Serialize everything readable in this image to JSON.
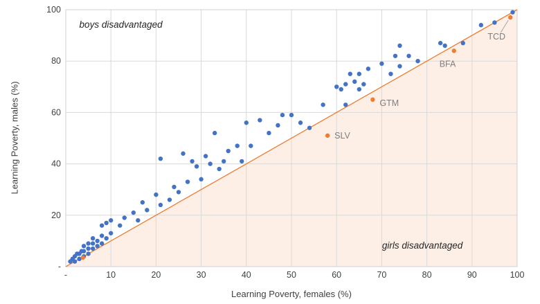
{
  "chart_data": {
    "type": "scatter",
    "title": "",
    "xlabel": "Learning Poverty, females (%)",
    "ylabel": "Learning Poverty, males (%)",
    "xlim": [
      0,
      100
    ],
    "ylim": [
      0,
      100
    ],
    "x_tick_values": [
      0,
      10,
      20,
      30,
      40,
      50,
      60,
      70,
      80,
      90,
      100
    ],
    "x_tick_labels": [
      "-",
      "10",
      "20",
      "30",
      "40",
      "50",
      "60",
      "70",
      "80",
      "90",
      "100"
    ],
    "y_tick_values": [
      0,
      20,
      40,
      60,
      80,
      100
    ],
    "y_tick_labels": [
      "-",
      "20",
      "40",
      "60",
      "80",
      "100"
    ],
    "grid": "on",
    "colors": {
      "points": "#4472c4",
      "highlight": "#ed7d31",
      "diagonal": "#ed7d31",
      "grid": "#d9d9d9",
      "border": "#d0d0d0",
      "shading_below_diagonal": "#fdeee6",
      "tick_text": "#404040",
      "country_label": "#7f7f7f",
      "annotation_text": "#262626"
    },
    "diagonal": {
      "from": [
        0,
        0
      ],
      "to": [
        100,
        100
      ]
    },
    "shading": {
      "region": "below-diagonal"
    },
    "annotations": [
      {
        "id": "boys",
        "text": "boys disadvantaged",
        "x": 3,
        "y": 93,
        "anchor": "start"
      },
      {
        "id": "girls",
        "text": "girls disadvantaged",
        "x": 79,
        "y": 7,
        "anchor": "middle"
      }
    ],
    "series": [
      {
        "name": "countries",
        "points": [
          [
            1,
            2
          ],
          [
            1.5,
            3
          ],
          [
            2,
            2
          ],
          [
            2,
            4
          ],
          [
            2.5,
            5
          ],
          [
            3,
            3
          ],
          [
            3,
            5
          ],
          [
            3.5,
            6
          ],
          [
            4,
            4
          ],
          [
            4,
            6
          ],
          [
            4,
            8
          ],
          [
            5,
            5
          ],
          [
            5,
            7
          ],
          [
            5,
            9
          ],
          [
            6,
            7
          ],
          [
            6,
            9
          ],
          [
            6,
            11
          ],
          [
            7,
            8
          ],
          [
            7,
            10
          ],
          [
            8,
            9
          ],
          [
            8,
            12
          ],
          [
            8,
            16
          ],
          [
            9,
            11
          ],
          [
            9,
            17
          ],
          [
            10,
            13
          ],
          [
            10,
            18
          ],
          [
            12,
            16
          ],
          [
            13,
            19
          ],
          [
            15,
            21
          ],
          [
            16,
            18
          ],
          [
            17,
            25
          ],
          [
            18,
            22
          ],
          [
            20,
            28
          ],
          [
            21,
            24
          ],
          [
            21,
            42
          ],
          [
            23,
            26
          ],
          [
            24,
            31
          ],
          [
            25,
            29
          ],
          [
            26,
            44
          ],
          [
            27,
            33
          ],
          [
            28,
            41
          ],
          [
            29,
            39
          ],
          [
            30,
            34
          ],
          [
            31,
            43
          ],
          [
            32,
            40
          ],
          [
            33,
            52
          ],
          [
            34,
            38
          ],
          [
            35,
            41
          ],
          [
            36,
            45
          ],
          [
            38,
            47
          ],
          [
            39,
            41
          ],
          [
            40,
            56
          ],
          [
            41,
            47
          ],
          [
            43,
            57
          ],
          [
            45,
            52
          ],
          [
            47,
            55
          ],
          [
            48,
            59
          ],
          [
            50,
            59
          ],
          [
            52,
            56
          ],
          [
            54,
            54
          ],
          [
            57,
            63
          ],
          [
            60,
            70
          ],
          [
            61,
            69
          ],
          [
            62,
            63
          ],
          [
            62,
            71
          ],
          [
            63,
            75
          ],
          [
            64,
            72
          ],
          [
            65,
            69
          ],
          [
            65,
            75
          ],
          [
            66,
            71
          ],
          [
            67,
            77
          ],
          [
            70,
            79
          ],
          [
            72,
            75
          ],
          [
            73,
            82
          ],
          [
            74,
            78
          ],
          [
            74,
            86
          ],
          [
            76,
            82
          ],
          [
            78,
            80
          ],
          [
            83,
            87
          ],
          [
            84,
            86
          ],
          [
            88,
            87
          ],
          [
            92,
            94
          ],
          [
            95,
            95
          ],
          [
            99,
            99
          ]
        ]
      },
      {
        "name": "highlighted",
        "points": [
          {
            "x": 3.8,
            "y": 3.5,
            "label": "",
            "dx": 0,
            "dy": 0,
            "anchor": "start",
            "leader": false
          },
          {
            "x": 58,
            "y": 51,
            "label": "SLV",
            "dx": 10,
            "dy": 4,
            "anchor": "start",
            "leader": false
          },
          {
            "x": 68,
            "y": 65,
            "label": "GTM",
            "dx": 10,
            "dy": 9,
            "anchor": "start",
            "leader": false
          },
          {
            "x": 86,
            "y": 84,
            "label": "BFA",
            "dx": -21,
            "dy": 23,
            "anchor": "start",
            "leader": false
          },
          {
            "x": 98.5,
            "y": 97,
            "label": "TCD",
            "dx": -20,
            "dy": 32,
            "anchor": "middle",
            "leader": true
          }
        ]
      }
    ]
  }
}
